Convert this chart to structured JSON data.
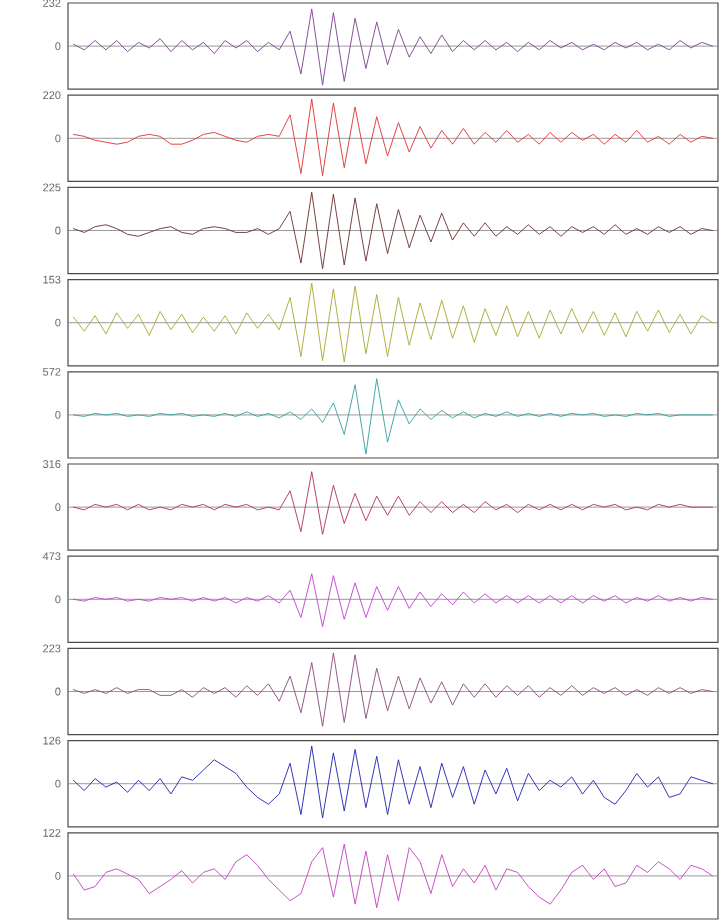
{
  "chart_data": [
    {
      "type": "line",
      "categories": [
        null,
        null,
        null,
        null,
        null,
        null,
        null,
        null,
        null,
        null,
        null,
        null,
        null,
        null,
        null,
        null,
        null,
        null,
        null,
        null,
        null,
        null,
        null,
        null,
        null,
        null,
        null,
        null,
        null,
        null,
        null,
        null,
        null,
        null,
        null,
        null,
        null,
        null,
        null,
        null,
        null,
        null,
        null,
        null,
        null,
        null,
        null,
        null,
        null,
        null,
        null,
        null,
        null,
        null,
        null,
        null,
        null,
        null,
        null,
        null
      ],
      "color": "#7b3f8f",
      "ylim": [
        -232,
        232
      ],
      "yticks": [
        0,
        232
      ],
      "tick_labels": "y",
      "ref_lines": [
        {
          "axis": "y",
          "value": 0,
          "color": "#808080"
        }
      ],
      "values": [
        10,
        -20,
        30,
        -20,
        30,
        -30,
        20,
        -10,
        40,
        -30,
        30,
        -20,
        20,
        -40,
        30,
        -10,
        30,
        -30,
        20,
        -20,
        80,
        -150,
        200,
        -210,
        180,
        -190,
        150,
        -120,
        130,
        -100,
        90,
        -60,
        50,
        -40,
        60,
        -30,
        30,
        -20,
        30,
        -20,
        20,
        -30,
        20,
        -20,
        30,
        -10,
        20,
        -20,
        10,
        -20,
        20,
        -10,
        20,
        -20,
        10,
        -20,
        30,
        -10,
        20,
        0
      ]
    },
    {
      "type": "line",
      "categories": [
        null,
        null,
        null,
        null,
        null,
        null,
        null,
        null,
        null,
        null,
        null,
        null,
        null,
        null,
        null,
        null,
        null,
        null,
        null,
        null,
        null,
        null,
        null,
        null,
        null,
        null,
        null,
        null,
        null,
        null,
        null,
        null,
        null,
        null,
        null,
        null,
        null,
        null,
        null,
        null,
        null,
        null,
        null,
        null,
        null,
        null,
        null,
        null,
        null,
        null,
        null,
        null,
        null,
        null,
        null,
        null,
        null,
        null,
        null,
        null
      ],
      "color": "#e03030",
      "ylim": [
        -220,
        220
      ],
      "yticks": [
        0,
        220
      ],
      "tick_labels": "y",
      "ref_lines": [
        {
          "axis": "y",
          "value": 0,
          "color": "#808080"
        }
      ],
      "values": [
        20,
        10,
        -10,
        -20,
        -30,
        -20,
        10,
        20,
        10,
        -30,
        -30,
        -10,
        20,
        30,
        10,
        -10,
        -20,
        10,
        20,
        10,
        120,
        -180,
        200,
        -190,
        180,
        -150,
        160,
        -130,
        110,
        -90,
        80,
        -70,
        60,
        -50,
        40,
        -30,
        50,
        -30,
        30,
        -20,
        40,
        -20,
        20,
        -30,
        30,
        -20,
        30,
        -10,
        20,
        -30,
        20,
        -20,
        40,
        -20,
        10,
        -30,
        20,
        -20,
        10,
        0
      ]
    },
    {
      "type": "line",
      "categories": [
        null,
        null,
        null,
        null,
        null,
        null,
        null,
        null,
        null,
        null,
        null,
        null,
        null,
        null,
        null,
        null,
        null,
        null,
        null,
        null,
        null,
        null,
        null,
        null,
        null,
        null,
        null,
        null,
        null,
        null,
        null,
        null,
        null,
        null,
        null,
        null,
        null,
        null,
        null,
        null,
        null,
        null,
        null,
        null,
        null,
        null,
        null,
        null,
        null,
        null,
        null,
        null,
        null,
        null,
        null,
        null,
        null,
        null,
        null,
        null
      ],
      "color": "#6b2e2e",
      "ylim": [
        -225,
        225
      ],
      "yticks": [
        0,
        225
      ],
      "tick_labels": "y",
      "ref_lines": [
        {
          "axis": "y",
          "value": 0,
          "color": "#808080"
        }
      ],
      "values": [
        10,
        -10,
        20,
        30,
        10,
        -20,
        -30,
        -10,
        10,
        20,
        -10,
        -20,
        10,
        20,
        10,
        -10,
        -10,
        10,
        -20,
        10,
        100,
        -170,
        200,
        -200,
        190,
        -180,
        170,
        -160,
        140,
        -120,
        110,
        -90,
        80,
        -60,
        90,
        -50,
        40,
        -30,
        40,
        -30,
        20,
        -20,
        30,
        -20,
        20,
        -30,
        20,
        -10,
        20,
        -20,
        30,
        -20,
        10,
        -20,
        20,
        -10,
        20,
        -20,
        10,
        0
      ]
    },
    {
      "type": "line",
      "categories": [
        null,
        null,
        null,
        null,
        null,
        null,
        null,
        null,
        null,
        null,
        null,
        null,
        null,
        null,
        null,
        null,
        null,
        null,
        null,
        null,
        null,
        null,
        null,
        null,
        null,
        null,
        null,
        null,
        null,
        null,
        null,
        null,
        null,
        null,
        null,
        null,
        null,
        null,
        null,
        null,
        null,
        null,
        null,
        null,
        null,
        null,
        null,
        null,
        null,
        null,
        null,
        null,
        null,
        null,
        null,
        null,
        null,
        null,
        null,
        null
      ],
      "color": "#a8a830",
      "ylim": [
        -153,
        153
      ],
      "yticks": [
        0,
        153
      ],
      "tick_labels": "y",
      "ref_lines": [
        {
          "axis": "y",
          "value": 0,
          "color": "#808080"
        }
      ],
      "values": [
        20,
        -30,
        25,
        -40,
        35,
        -20,
        30,
        -45,
        40,
        -25,
        30,
        -35,
        20,
        -30,
        25,
        -40,
        35,
        -20,
        30,
        -25,
        90,
        -120,
        140,
        -135,
        120,
        -140,
        130,
        -110,
        100,
        -120,
        90,
        -80,
        70,
        -60,
        80,
        -55,
        60,
        -70,
        50,
        -45,
        60,
        -50,
        40,
        -55,
        45,
        -40,
        50,
        -35,
        40,
        -45,
        35,
        -50,
        40,
        -30,
        45,
        -35,
        30,
        -40,
        25,
        0
      ]
    },
    {
      "type": "line",
      "categories": [
        null,
        null,
        null,
        null,
        null,
        null,
        null,
        null,
        null,
        null,
        null,
        null,
        null,
        null,
        null,
        null,
        null,
        null,
        null,
        null,
        null,
        null,
        null,
        null,
        null,
        null,
        null,
        null,
        null,
        null,
        null,
        null,
        null,
        null,
        null,
        null,
        null,
        null,
        null,
        null,
        null,
        null,
        null,
        null,
        null,
        null,
        null,
        null,
        null,
        null,
        null,
        null,
        null,
        null,
        null,
        null,
        null,
        null,
        null,
        null
      ],
      "color": "#30a0a0",
      "ylim": [
        -572,
        572
      ],
      "yticks": [
        0,
        572
      ],
      "tick_labels": "y",
      "ref_lines": [
        {
          "axis": "y",
          "value": 0,
          "color": "#808080"
        }
      ],
      "values": [
        0,
        -20,
        20,
        0,
        20,
        -20,
        0,
        -20,
        20,
        0,
        20,
        -20,
        0,
        -20,
        20,
        -20,
        40,
        -20,
        20,
        -40,
        40,
        -60,
        80,
        -100,
        160,
        -260,
        400,
        -520,
        480,
        -360,
        200,
        -120,
        80,
        -60,
        60,
        -40,
        40,
        -40,
        20,
        -20,
        40,
        -20,
        20,
        -20,
        20,
        -20,
        20,
        0,
        20,
        -20,
        0,
        -20,
        20,
        0,
        20,
        -20,
        0,
        0,
        0,
        0
      ]
    },
    {
      "type": "line",
      "categories": [
        null,
        null,
        null,
        null,
        null,
        null,
        null,
        null,
        null,
        null,
        null,
        null,
        null,
        null,
        null,
        null,
        null,
        null,
        null,
        null,
        null,
        null,
        null,
        null,
        null,
        null,
        null,
        null,
        null,
        null,
        null,
        null,
        null,
        null,
        null,
        null,
        null,
        null,
        null,
        null,
        null,
        null,
        null,
        null,
        null,
        null,
        null,
        null,
        null,
        null,
        null,
        null,
        null,
        null,
        null,
        null,
        null,
        null,
        null,
        null
      ],
      "color": "#b03060",
      "ylim": [
        -316,
        316
      ],
      "yticks": [
        0,
        316
      ],
      "tick_labels": "y",
      "ref_lines": [
        {
          "axis": "y",
          "value": 0,
          "color": "#808080"
        }
      ],
      "values": [
        0,
        -20,
        20,
        0,
        20,
        -20,
        20,
        -20,
        0,
        -20,
        20,
        0,
        20,
        -20,
        20,
        0,
        20,
        -20,
        0,
        -20,
        120,
        -180,
        260,
        -200,
        160,
        -120,
        100,
        -100,
        80,
        -60,
        80,
        -60,
        40,
        -40,
        40,
        -40,
        20,
        -40,
        40,
        -20,
        20,
        -40,
        20,
        -20,
        20,
        -20,
        20,
        -20,
        20,
        0,
        20,
        -20,
        0,
        -20,
        20,
        0,
        20,
        0,
        0,
        0
      ]
    },
    {
      "type": "line",
      "categories": [
        null,
        null,
        null,
        null,
        null,
        null,
        null,
        null,
        null,
        null,
        null,
        null,
        null,
        null,
        null,
        null,
        null,
        null,
        null,
        null,
        null,
        null,
        null,
        null,
        null,
        null,
        null,
        null,
        null,
        null,
        null,
        null,
        null,
        null,
        null,
        null,
        null,
        null,
        null,
        null,
        null,
        null,
        null,
        null,
        null,
        null,
        null,
        null,
        null,
        null,
        null,
        null,
        null,
        null,
        null,
        null,
        null,
        null,
        null,
        null
      ],
      "color": "#c040d0",
      "ylim": [
        -473,
        473
      ],
      "yticks": [
        0,
        473
      ],
      "tick_labels": "y",
      "ref_lines": [
        {
          "axis": "y",
          "value": 0,
          "color": "#808080"
        }
      ],
      "values": [
        0,
        -20,
        20,
        0,
        20,
        -20,
        0,
        -20,
        20,
        0,
        20,
        -20,
        20,
        -20,
        20,
        -40,
        20,
        -20,
        40,
        -40,
        100,
        -200,
        280,
        -300,
        260,
        -220,
        180,
        -200,
        140,
        -120,
        140,
        -100,
        80,
        -80,
        60,
        -60,
        80,
        -40,
        60,
        -40,
        40,
        -40,
        40,
        -40,
        40,
        -40,
        40,
        -40,
        40,
        -20,
        40,
        -40,
        20,
        -20,
        40,
        -20,
        20,
        -20,
        20,
        0
      ]
    },
    {
      "type": "line",
      "categories": [
        null,
        null,
        null,
        null,
        null,
        null,
        null,
        null,
        null,
        null,
        null,
        null,
        null,
        null,
        null,
        null,
        null,
        null,
        null,
        null,
        null,
        null,
        null,
        null,
        null,
        null,
        null,
        null,
        null,
        null,
        null,
        null,
        null,
        null,
        null,
        null,
        null,
        null,
        null,
        null,
        null,
        null,
        null,
        null,
        null,
        null,
        null,
        null,
        null,
        null,
        null,
        null,
        null,
        null,
        null,
        null,
        null,
        null,
        null,
        null
      ],
      "color": "#8a4a7a",
      "ylim": [
        -223,
        223
      ],
      "yticks": [
        0,
        223
      ],
      "tick_labels": "y",
      "ref_lines": [
        {
          "axis": "y",
          "value": 0,
          "color": "#808080"
        }
      ],
      "values": [
        10,
        -10,
        10,
        -10,
        20,
        -10,
        10,
        10,
        -20,
        -20,
        10,
        -30,
        20,
        -10,
        20,
        -30,
        30,
        -20,
        40,
        -50,
        80,
        -110,
        150,
        -180,
        200,
        -160,
        190,
        -140,
        120,
        -100,
        80,
        -90,
        70,
        -60,
        50,
        -70,
        40,
        -30,
        40,
        -30,
        30,
        -20,
        30,
        -30,
        20,
        -20,
        30,
        -20,
        20,
        -10,
        20,
        -20,
        10,
        -20,
        20,
        -10,
        20,
        -10,
        10,
        0
      ]
    },
    {
      "type": "line",
      "categories": [
        null,
        null,
        null,
        null,
        null,
        null,
        null,
        null,
        null,
        null,
        null,
        null,
        null,
        null,
        null,
        null,
        null,
        null,
        null,
        null,
        null,
        null,
        null,
        null,
        null,
        null,
        null,
        null,
        null,
        null,
        null,
        null,
        null,
        null,
        null,
        null,
        null,
        null,
        null,
        null,
        null,
        null,
        null,
        null,
        null,
        null,
        null,
        null,
        null,
        null,
        null,
        null,
        null,
        null,
        null,
        null,
        null,
        null,
        null,
        null
      ],
      "color": "#2020b0",
      "ylim": [
        -126,
        126
      ],
      "yticks": [
        0,
        126
      ],
      "tick_labels": "y",
      "ref_lines": [
        {
          "axis": "y",
          "value": 0,
          "color": "#808080"
        }
      ],
      "values": [
        10,
        -20,
        15,
        -10,
        5,
        -25,
        10,
        -20,
        15,
        -30,
        20,
        10,
        40,
        70,
        50,
        30,
        -10,
        -40,
        -60,
        -30,
        60,
        -90,
        110,
        -100,
        90,
        -80,
        100,
        -70,
        80,
        -90,
        70,
        -60,
        50,
        -70,
        60,
        -40,
        50,
        -60,
        40,
        -30,
        45,
        -50,
        30,
        -20,
        10,
        -10,
        20,
        -30,
        10,
        -40,
        -60,
        -20,
        30,
        -10,
        20,
        -40,
        -30,
        20,
        10,
        0
      ]
    },
    {
      "type": "line",
      "categories": [
        null,
        null,
        null,
        null,
        null,
        null,
        null,
        null,
        null,
        null,
        null,
        null,
        null,
        null,
        null,
        null,
        null,
        null,
        null,
        null,
        null,
        null,
        null,
        null,
        null,
        null,
        null,
        null,
        null,
        null,
        null,
        null,
        null,
        null,
        null,
        null,
        null,
        null,
        null,
        null,
        null,
        null,
        null,
        null,
        null,
        null,
        null,
        null,
        null,
        null,
        null,
        null,
        null,
        null,
        null,
        null,
        null,
        null,
        null,
        null
      ],
      "color": "#c040c0",
      "ylim": [
        -122,
        122
      ],
      "yticks": [
        0,
        122
      ],
      "tick_labels": "y",
      "ref_lines": [
        {
          "axis": "y",
          "value": 0,
          "color": "#808080"
        }
      ],
      "values": [
        5,
        -40,
        -30,
        10,
        20,
        5,
        -10,
        -50,
        -30,
        -10,
        15,
        -20,
        10,
        20,
        -10,
        40,
        60,
        30,
        -10,
        -40,
        -70,
        -50,
        40,
        80,
        -60,
        90,
        -80,
        70,
        -90,
        60,
        -70,
        80,
        40,
        -50,
        60,
        -30,
        20,
        -20,
        30,
        -40,
        20,
        10,
        -30,
        -60,
        -80,
        -40,
        10,
        30,
        -10,
        20,
        -30,
        -20,
        30,
        10,
        40,
        20,
        -10,
        30,
        20,
        0
      ]
    }
  ]
}
